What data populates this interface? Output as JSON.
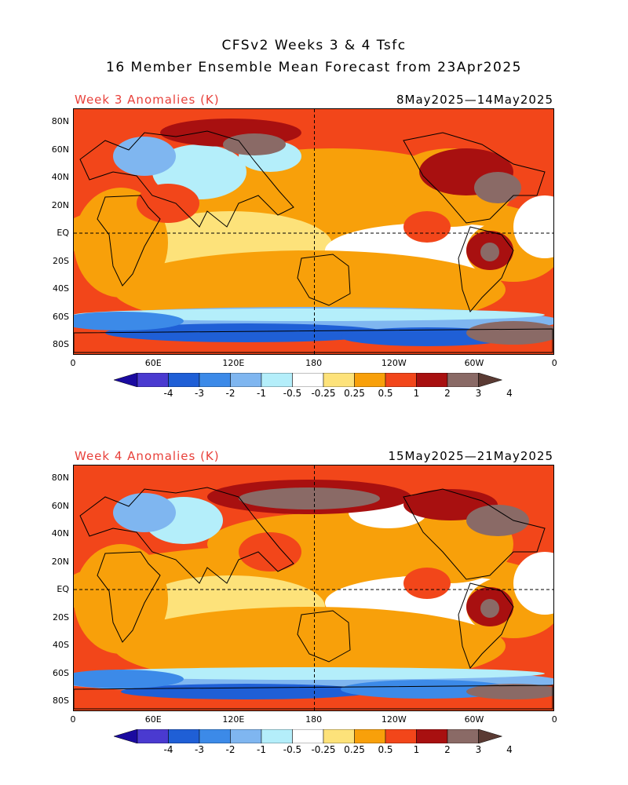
{
  "title_line1": "CFSv2 Weeks 3 & 4 Tsfc",
  "title_line2": "16 Member Ensemble Mean Forecast from 23Apr2025",
  "panels": [
    {
      "title": "Week 3 Anomalies (K)",
      "dates": "8May2025—14May2025"
    },
    {
      "title": "Week 4 Anomalies (K)",
      "dates": "15May2025—21May2025"
    }
  ],
  "lat_labels": [
    "80N",
    "60N",
    "40N",
    "20N",
    "EQ",
    "20S",
    "40S",
    "60S",
    "80S"
  ],
  "lon_labels": [
    "0",
    "60E",
    "120E",
    "180",
    "120W",
    "60W",
    "0"
  ],
  "colorbar": {
    "labels": [
      "-4",
      "-3",
      "-2",
      "-1",
      "-0.5",
      "-0.25",
      "0.25",
      "0.5",
      "1",
      "2",
      "3",
      "4"
    ],
    "colors": [
      "#1a0aa0",
      "#4a3ad0",
      "#1f5fd6",
      "#3c8ae8",
      "#7fb6f0",
      "#b4eefa",
      "#ffffff",
      "#fde27a",
      "#f8a00a",
      "#f2461a",
      "#a81010",
      "#8a6a66",
      "#5a3a33"
    ]
  }
}
